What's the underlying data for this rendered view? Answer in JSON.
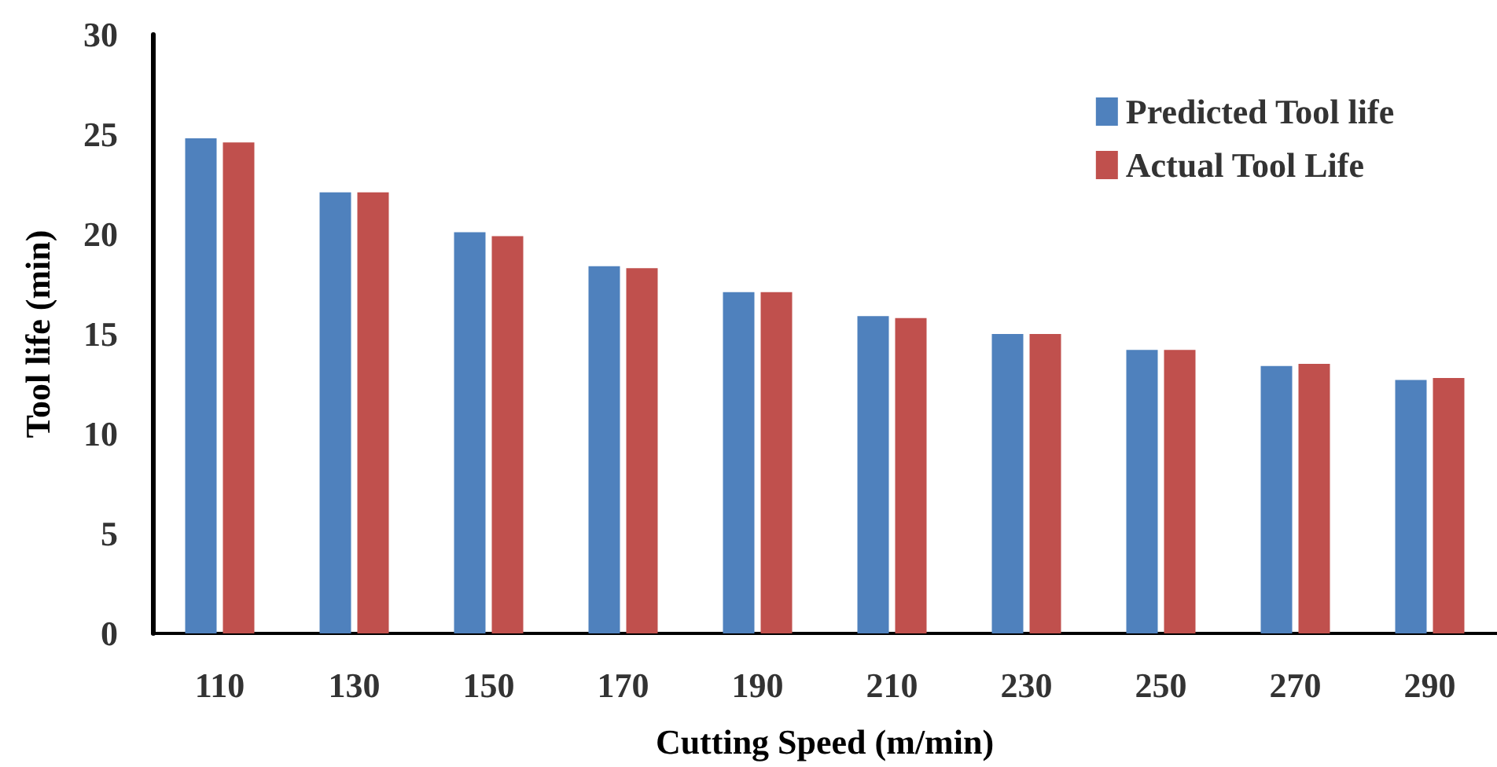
{
  "chart_data": {
    "type": "bar",
    "xlabel": "Cutting Speed (m/min)",
    "ylabel": "Tool life (min)",
    "categories": [
      "110",
      "130",
      "150",
      "170",
      "190",
      "210",
      "230",
      "250",
      "270",
      "290"
    ],
    "series": [
      {
        "name": "Predicted Tool life",
        "color": "#4f81bd",
        "values": [
          24.8,
          22.1,
          20.1,
          18.4,
          17.1,
          15.9,
          15.0,
          14.2,
          13.4,
          12.7
        ]
      },
      {
        "name": "Actual Tool Life",
        "color": "#c0504d",
        "values": [
          24.6,
          22.1,
          19.9,
          18.3,
          17.1,
          15.8,
          15.0,
          14.2,
          13.5,
          12.8
        ]
      }
    ],
    "ylim": [
      0,
      30
    ],
    "yticks": [
      0,
      5,
      10,
      15,
      20,
      25,
      30
    ],
    "grid": false,
    "legend": "top right"
  }
}
